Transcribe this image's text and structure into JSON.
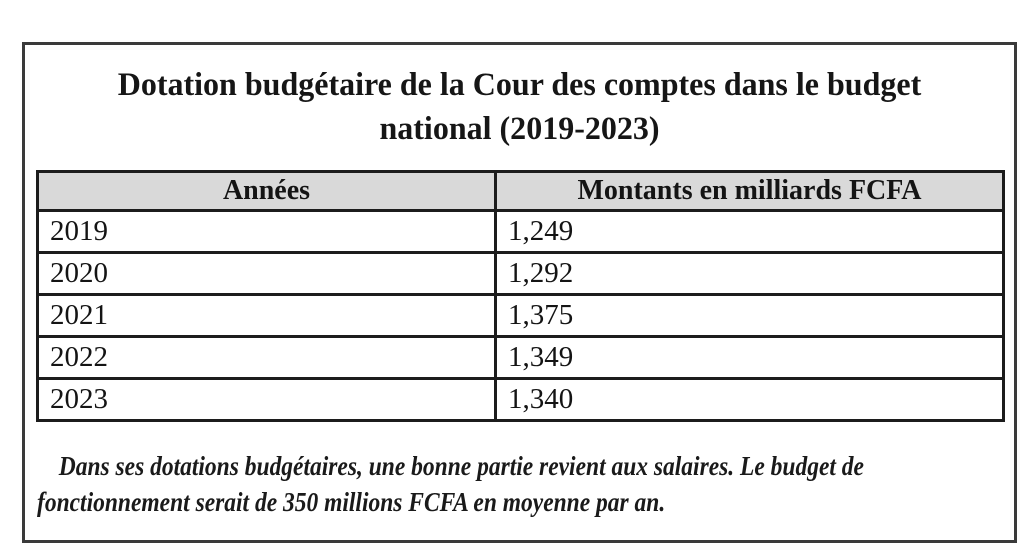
{
  "document": {
    "title": {
      "line1": "Dotation budgétaire de la Cour des comptes dans le budget",
      "line2": "national (2019-2023)"
    },
    "table": {
      "headers": [
        "Années",
        "Montants en milliards FCFA"
      ],
      "rows": [
        {
          "year": "2019",
          "amount": "1,249"
        },
        {
          "year": "2020",
          "amount": "1,292"
        },
        {
          "year": "2021",
          "amount": "1,375"
        },
        {
          "year": "2022",
          "amount": "1,349"
        },
        {
          "year": "2023",
          "amount": "1,340"
        }
      ]
    },
    "footnote": {
      "line1": "Dans ses dotations budgétaires, une bonne partie revient aux salaires. Le budget de",
      "line2": "fonctionnement serait de 350 millions FCFA en moyenne par an."
    },
    "colors": {
      "header_bg": "#d9d9d9",
      "table_border": "#1c1c1c",
      "frame_border": "#3a3a3a",
      "text": "#141414"
    }
  },
  "chart_data": {
    "type": "table",
    "title": "Dotation budgétaire de la Cour des comptes dans le budget national (2019-2023)",
    "columns": [
      "Années",
      "Montants en milliards FCFA"
    ],
    "categories": [
      "2019",
      "2020",
      "2021",
      "2022",
      "2023"
    ],
    "values": [
      1.249,
      1.292,
      1.375,
      1.349,
      1.34
    ],
    "unit": "milliards FCFA",
    "note": "Dans ses dotations budgétaires, une bonne partie revient aux salaires. Le budget de fonctionnement serait de 350 millions FCFA en moyenne par an."
  }
}
